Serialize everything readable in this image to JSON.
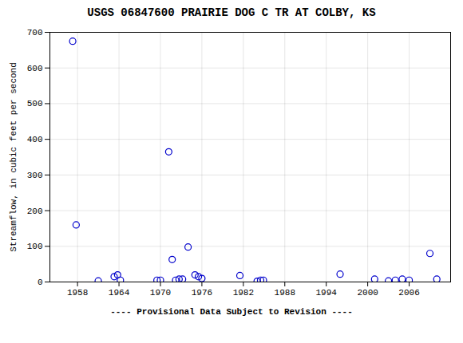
{
  "chart_data": {
    "type": "scatter",
    "title": "USGS 06847600 PRAIRIE DOG C TR AT COLBY, KS",
    "ylabel": "Streamflow, in cubic feet per second",
    "x": [
      1957.3,
      1957.8,
      1961,
      1963.3,
      1963.8,
      1964.2,
      1969.5,
      1970.0,
      1971.2,
      1971.7,
      1972.2,
      1972.7,
      1973.2,
      1974.0,
      1975.0,
      1975.5,
      1976.0,
      1981.5,
      1984.0,
      1984.5,
      1984.9,
      1996.0,
      2001.0,
      2003.0,
      2004.0,
      2005.0,
      2006.0,
      2009.0,
      2010.0
    ],
    "values": [
      675,
      160,
      3,
      15,
      20,
      5,
      5,
      5,
      365,
      63,
      5,
      8,
      8,
      98,
      20,
      15,
      10,
      18,
      2,
      5,
      5,
      22,
      8,
      3,
      5,
      8,
      5,
      80,
      8
    ],
    "color": "#0000CC",
    "marker": "circle",
    "xlim": [
      1954,
      2012
    ],
    "xticks": [
      1958,
      1964,
      1970,
      1976,
      1982,
      1988,
      1994,
      2000,
      2006
    ],
    "ylim": [
      0,
      700
    ],
    "yticks": [
      0,
      100,
      200,
      300,
      400,
      500,
      600,
      700
    ],
    "grid": true,
    "annotations": [
      "---- Provisional Data Subject to Revision ----"
    ]
  }
}
